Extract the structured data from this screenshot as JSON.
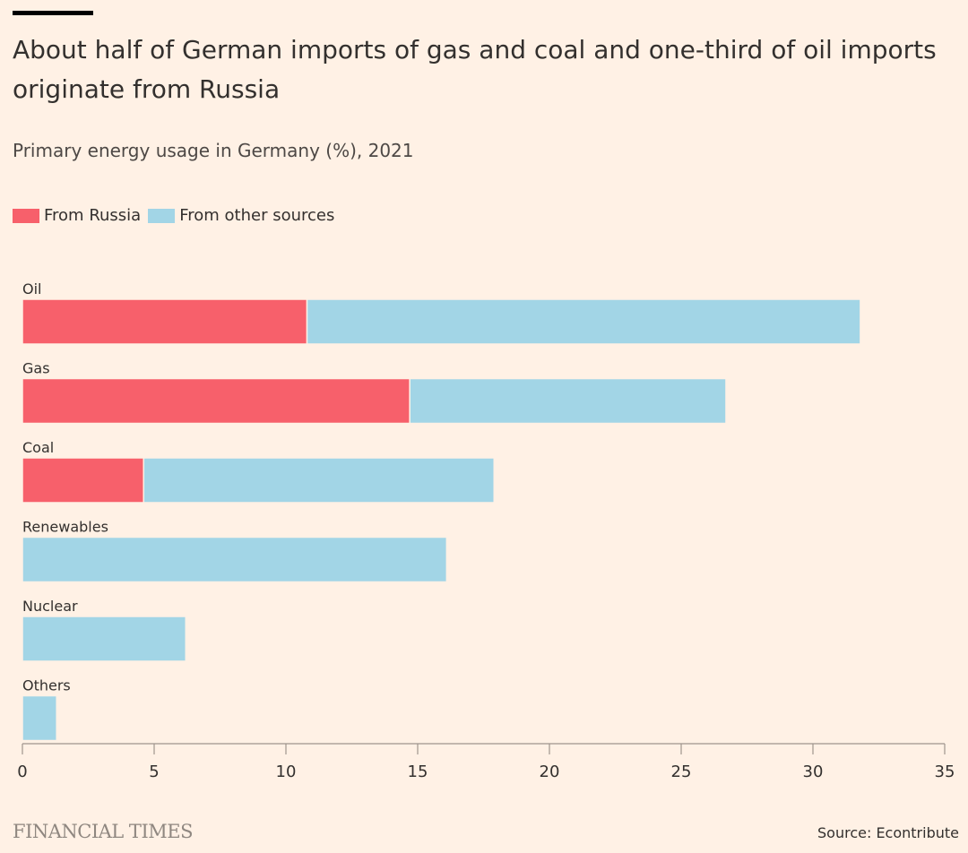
{
  "header": {
    "title": "About half of German imports of gas and coal and one-third of oil imports originate from Russia",
    "subtitle": "Primary energy usage in Germany (%), 2021"
  },
  "legend": [
    {
      "label": "From Russia",
      "color": "#f7606b"
    },
    {
      "label": "From other sources",
      "color": "#a2d5e6"
    }
  ],
  "footer": {
    "brand": "FINANCIAL TIMES",
    "source": "Source: Econtribute"
  },
  "chart_data": {
    "type": "bar",
    "orientation": "horizontal",
    "stacked": true,
    "title": "About half of German imports of gas and coal and one-third of oil imports originate from Russia",
    "subtitle": "Primary energy usage in Germany (%), 2021",
    "xlabel": "",
    "ylabel": "",
    "categories": [
      "Oil",
      "Gas",
      "Coal",
      "Renewables",
      "Nuclear",
      "Others"
    ],
    "series": [
      {
        "name": "From Russia",
        "color": "#f7606b",
        "values": [
          10.8,
          14.7,
          4.6,
          0,
          0,
          0
        ]
      },
      {
        "name": "From other sources",
        "color": "#a2d5e6",
        "values": [
          21.0,
          12.0,
          13.3,
          16.1,
          6.2,
          1.3
        ]
      }
    ],
    "xlim": [
      0,
      35
    ],
    "xticks": [
      0,
      5,
      10,
      15,
      20,
      25,
      30,
      35
    ],
    "grid": false,
    "legend_position": "top-left",
    "source": "Source: Econtribute"
  }
}
